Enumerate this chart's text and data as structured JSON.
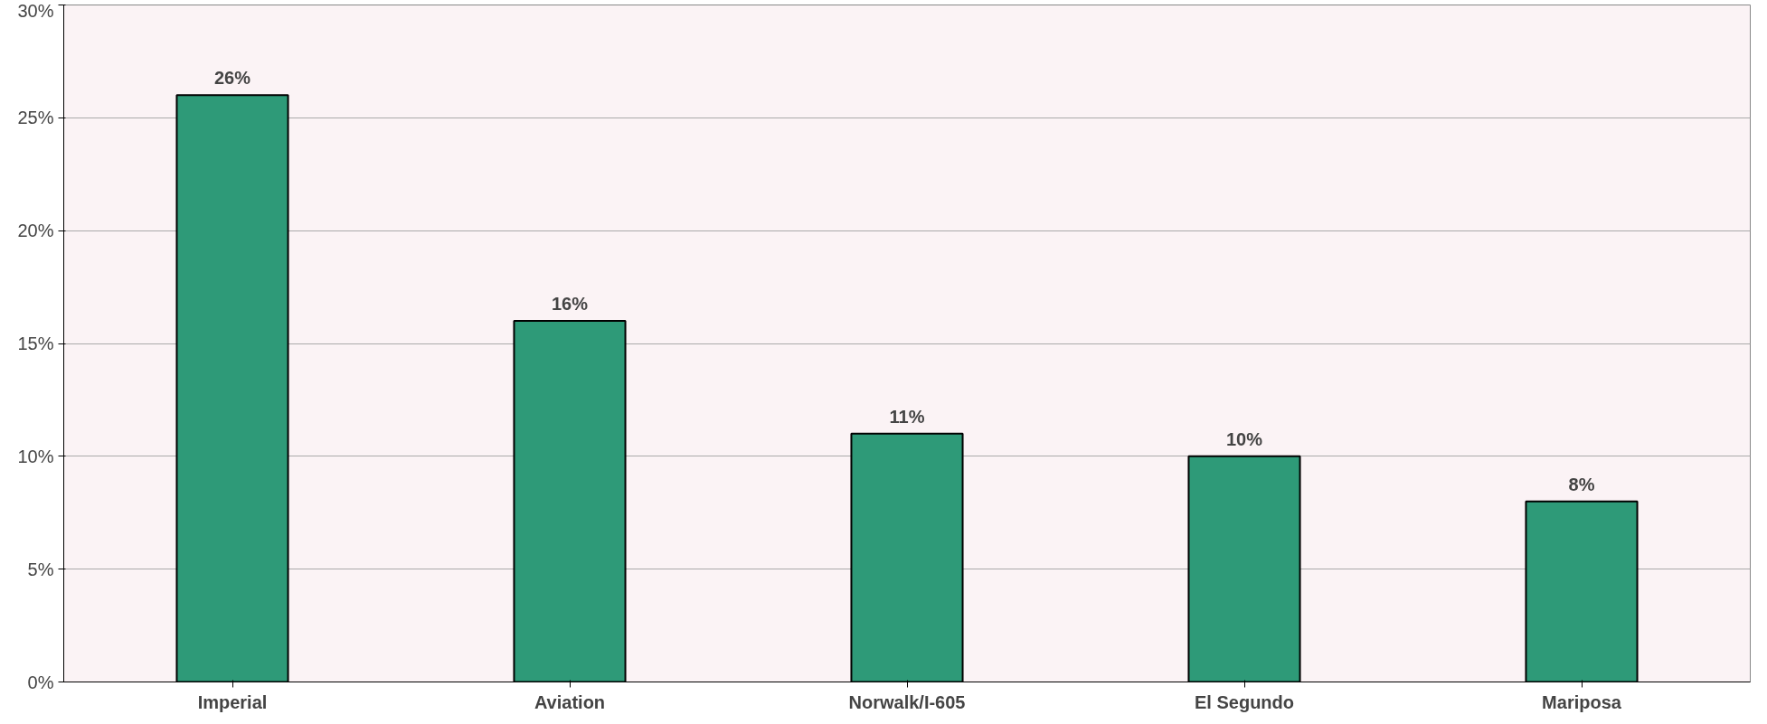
{
  "chart_data": {
    "type": "bar",
    "categories": [
      "Imperial",
      "Aviation",
      "Norwalk/I-605",
      "El Segundo",
      "Mariposa"
    ],
    "values": [
      26,
      16,
      11,
      10,
      8
    ],
    "value_labels": [
      "26%",
      "16%",
      "11%",
      "10%",
      "8%"
    ],
    "color": "#2e9a78",
    "ylim": [
      0,
      30
    ],
    "yticks": [
      {
        "value": 0,
        "label": "0%"
      },
      {
        "value": 5,
        "label": "5%"
      },
      {
        "value": 10,
        "label": "10%"
      },
      {
        "value": 15,
        "label": "15%"
      },
      {
        "value": 20,
        "label": "20%"
      },
      {
        "value": 25,
        "label": "25%"
      },
      {
        "value": 30,
        "label": "30%"
      }
    ],
    "grid": "y"
  }
}
